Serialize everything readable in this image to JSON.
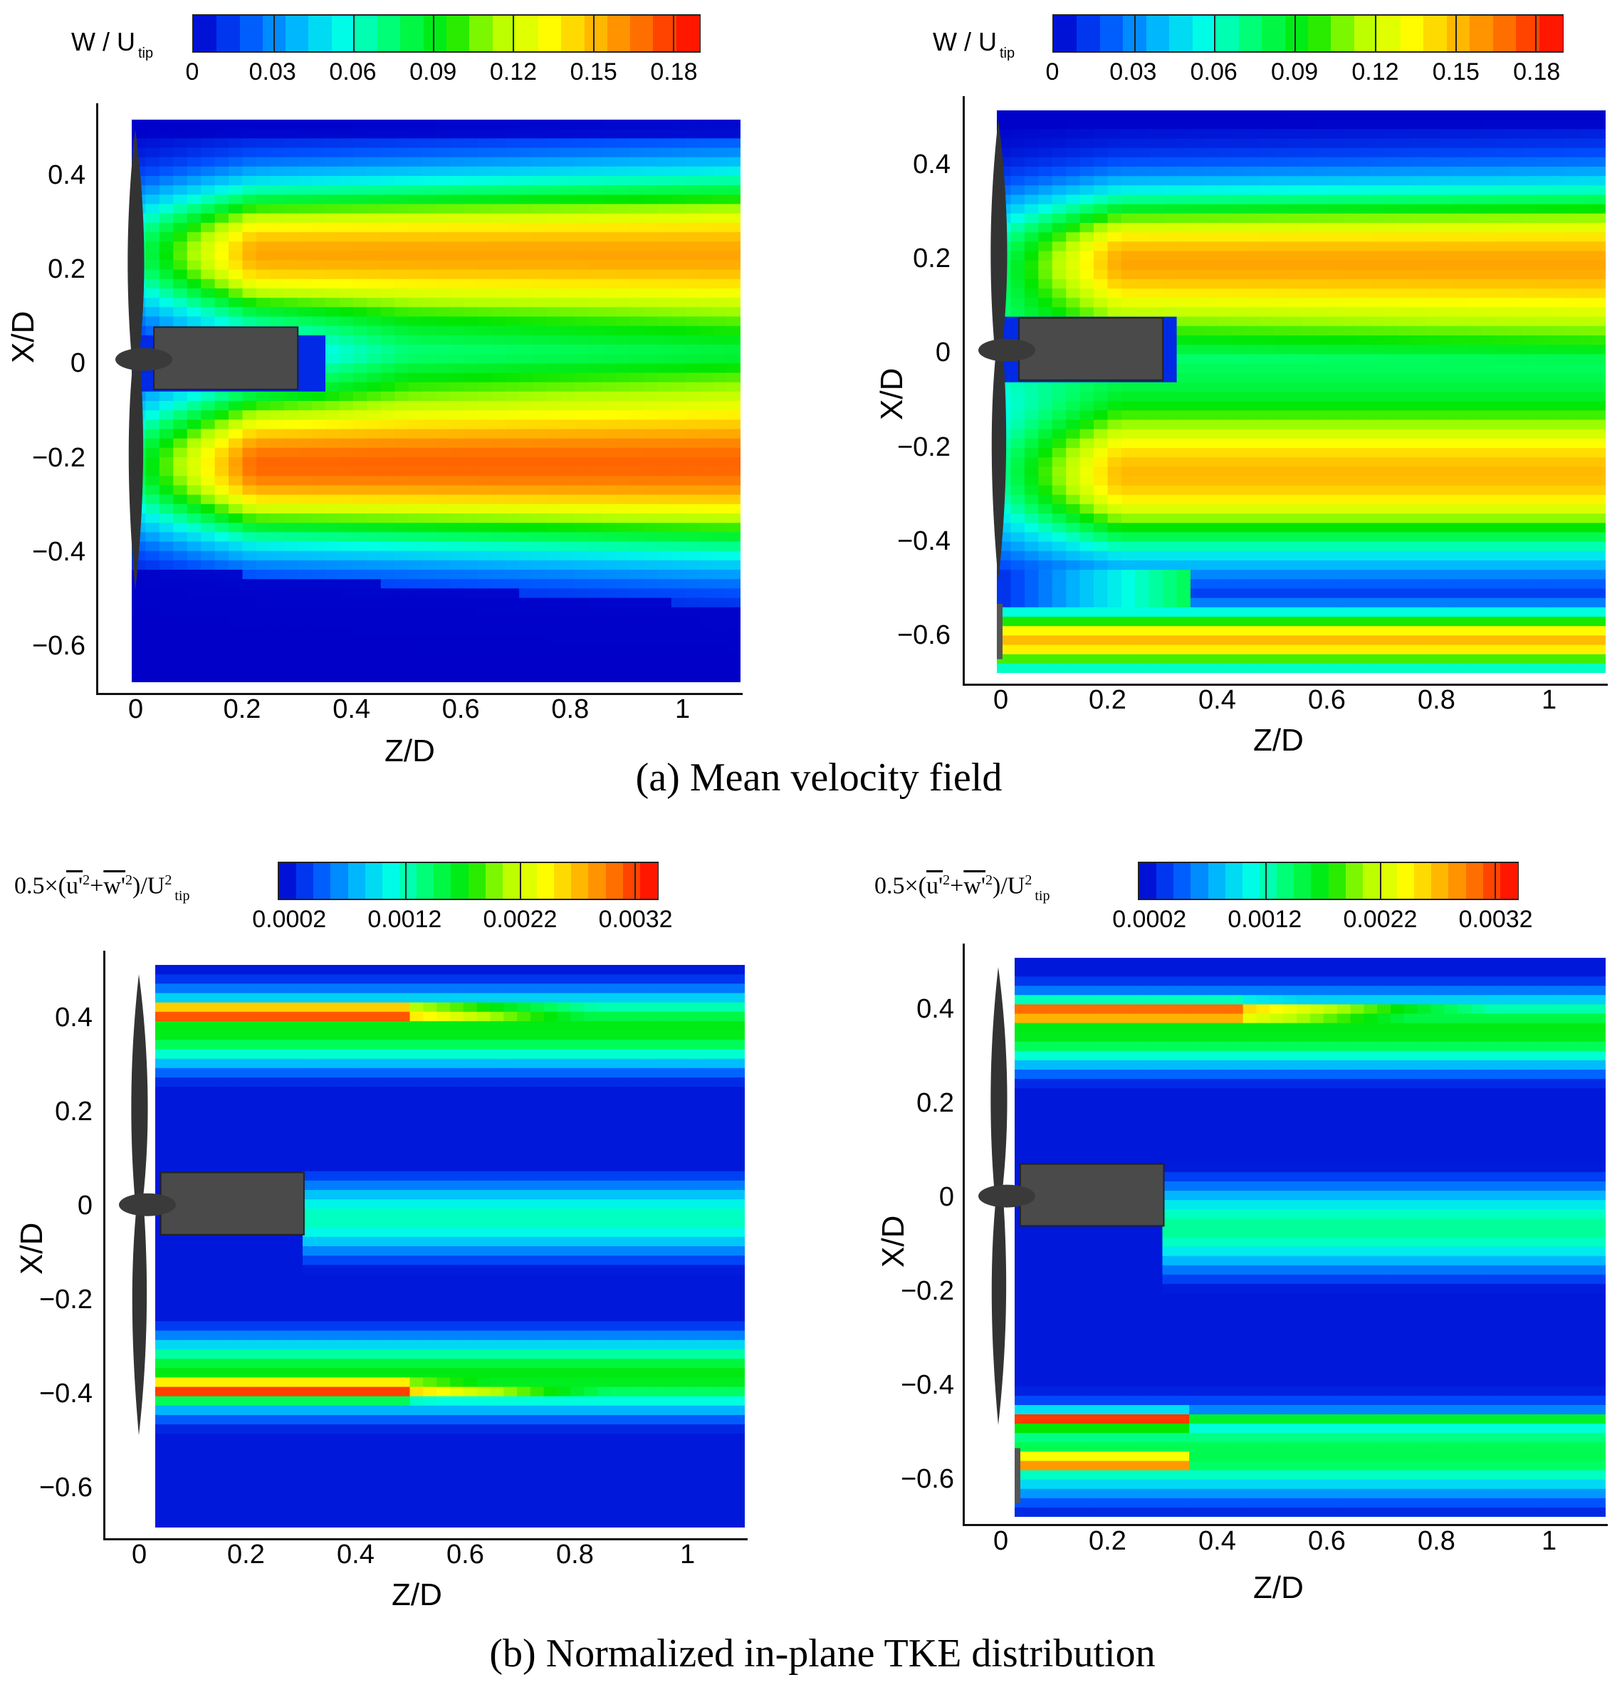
{
  "figure": {
    "caption_a": "(a) Mean velocity field",
    "caption_b": "(b) Normalized in-plane TKE distribution"
  },
  "colormap": {
    "stops": [
      "#0000c8",
      "#0050ff",
      "#00b4ff",
      "#00ffe6",
      "#00ff64",
      "#00e600",
      "#b4ff00",
      "#ffff00",
      "#ffb400",
      "#ff6400",
      "#ff0000"
    ]
  },
  "chart_data": [
    {
      "id": "a-left",
      "type": "heatmap",
      "title": "",
      "variable": "W / U tip",
      "colorbar": {
        "label_main": "W / U",
        "label_sub": "tip",
        "ticks": [
          "0",
          "0.03",
          "0.06",
          "0.09",
          "0.12",
          "0.15",
          "0.18"
        ],
        "range": [
          0,
          0.19
        ]
      },
      "xlabel": "Z/D",
      "ylabel": "X/D",
      "xticks": [
        "0",
        "0.2",
        "0.4",
        "0.6",
        "0.8",
        "1"
      ],
      "yticks": [
        "0.4",
        "0.2",
        "0",
        "−0.2",
        "−0.4",
        "−0.6"
      ],
      "xlim": [
        -0.07,
        1.1
      ],
      "ylim": [
        -0.7,
        0.52
      ],
      "data_extent": {
        "z": [
          0,
          1.1
        ],
        "x": [
          -0.7,
          0.52
        ]
      },
      "kind": "velocity",
      "wall_case": false,
      "features": [
        {
          "name": "upper jet core",
          "x_center": 0.23,
          "peak": 0.15
        },
        {
          "name": "lower jet core",
          "x_center": -0.23,
          "peak": 0.17
        },
        {
          "name": "hub wake deficit",
          "x_center": 0.0,
          "z_end": 0.38,
          "value": 0.0
        },
        {
          "name": "free-stream region",
          "x_range": [
            -0.7,
            -0.45
          ],
          "value": 0.0
        }
      ]
    },
    {
      "id": "a-right",
      "type": "heatmap",
      "title": "",
      "variable": "W / U tip",
      "colorbar": {
        "label_main": "W / U",
        "label_sub": "tip",
        "ticks": [
          "0",
          "0.03",
          "0.06",
          "0.09",
          "0.12",
          "0.15",
          "0.18"
        ],
        "range": [
          0,
          0.19
        ]
      },
      "xlabel": "Z/D",
      "ylabel": "X/D",
      "xticks": [
        "0",
        "0.2",
        "0.4",
        "0.6",
        "0.8",
        "1"
      ],
      "yticks": [
        "0.4",
        "0.2",
        "0",
        "−0.2",
        "−0.4",
        "−0.6"
      ],
      "xlim": [
        -0.07,
        1.1
      ],
      "ylim": [
        -0.7,
        0.52
      ],
      "data_extent": {
        "z": [
          0,
          1.1
        ],
        "x": [
          -0.7,
          0.52
        ]
      },
      "kind": "velocity",
      "wall_case": true,
      "features": [
        {
          "name": "upper jet core",
          "x_center": 0.2,
          "peak": 0.15
        },
        {
          "name": "lower jet core",
          "x_center": -0.27,
          "peak": 0.15
        },
        {
          "name": "gap recirculation",
          "x_center": -0.52,
          "z_end": 0.35,
          "value": 0.0
        },
        {
          "name": "near-wall jet",
          "x_center": -0.63,
          "peak": 0.15
        }
      ]
    },
    {
      "id": "b-left",
      "type": "heatmap",
      "title": "",
      "variable": "0.5×(u'2+w'2)/U2tip",
      "colorbar": {
        "label_pre": "0.5×(",
        "label_u": "u'",
        "label_u_exp": "2",
        "label_plus": "+",
        "label_w": "w'",
        "label_w_exp": "2",
        "label_post": ")/U",
        "label_sup": "2",
        "label_sub": "tip",
        "ticks": [
          "0.0002",
          "0.0012",
          "0.0022",
          "0.0032"
        ],
        "range": [
          0.0001,
          0.0034
        ]
      },
      "xlabel": "Z/D",
      "ylabel": "X/D",
      "xticks": [
        "0",
        "0.2",
        "0.4",
        "0.6",
        "0.8",
        "1"
      ],
      "yticks": [
        "0.4",
        "0.2",
        "0",
        "−0.2",
        "−0.4",
        "−0.6"
      ],
      "xlim": [
        -0.07,
        1.1
      ],
      "ylim": [
        -0.7,
        0.52
      ],
      "data_extent": {
        "z": [
          0.03,
          1.1
        ],
        "x": [
          -0.7,
          0.52
        ]
      },
      "kind": "tke",
      "wall_case": false,
      "features": [
        {
          "name": "upper tip shear layer",
          "x_center": 0.41,
          "peak": 0.0033
        },
        {
          "name": "lower tip shear layer",
          "x_center": -0.4,
          "peak": 0.0033
        },
        {
          "name": "hub wake",
          "x_center": -0.03,
          "peak": 0.0012
        }
      ]
    },
    {
      "id": "b-right",
      "type": "heatmap",
      "title": "",
      "variable": "0.5×(u'2+w'2)/U2tip",
      "colorbar": {
        "label_pre": "0.5×(",
        "label_u": "u'",
        "label_u_exp": "2",
        "label_plus": "+",
        "label_w": "w'",
        "label_w_exp": "2",
        "label_post": ")/U",
        "label_sup": "2",
        "label_sub": "tip",
        "ticks": [
          "0.0002",
          "0.0012",
          "0.0022",
          "0.0032"
        ],
        "range": [
          0.0001,
          0.0034
        ]
      },
      "xlabel": "Z/D",
      "ylabel": "X/D",
      "xticks": [
        "0",
        "0.2",
        "0.4",
        "0.6",
        "0.8",
        "1"
      ],
      "yticks": [
        "0.4",
        "0.2",
        "0",
        "−0.2",
        "−0.4",
        "−0.6"
      ],
      "xlim": [
        -0.07,
        1.1
      ],
      "ylim": [
        -0.7,
        0.52
      ],
      "data_extent": {
        "z": [
          0.03,
          1.1
        ],
        "x": [
          -0.7,
          0.52
        ]
      },
      "kind": "tke",
      "wall_case": true,
      "features": [
        {
          "name": "upper tip shear layer",
          "x_center": 0.4,
          "peak": 0.0033
        },
        {
          "name": "gap shear layers",
          "x_center": -0.56,
          "peak": 0.0033
        },
        {
          "name": "hub wake",
          "x_center": -0.06,
          "peak": 0.0013
        }
      ]
    }
  ]
}
